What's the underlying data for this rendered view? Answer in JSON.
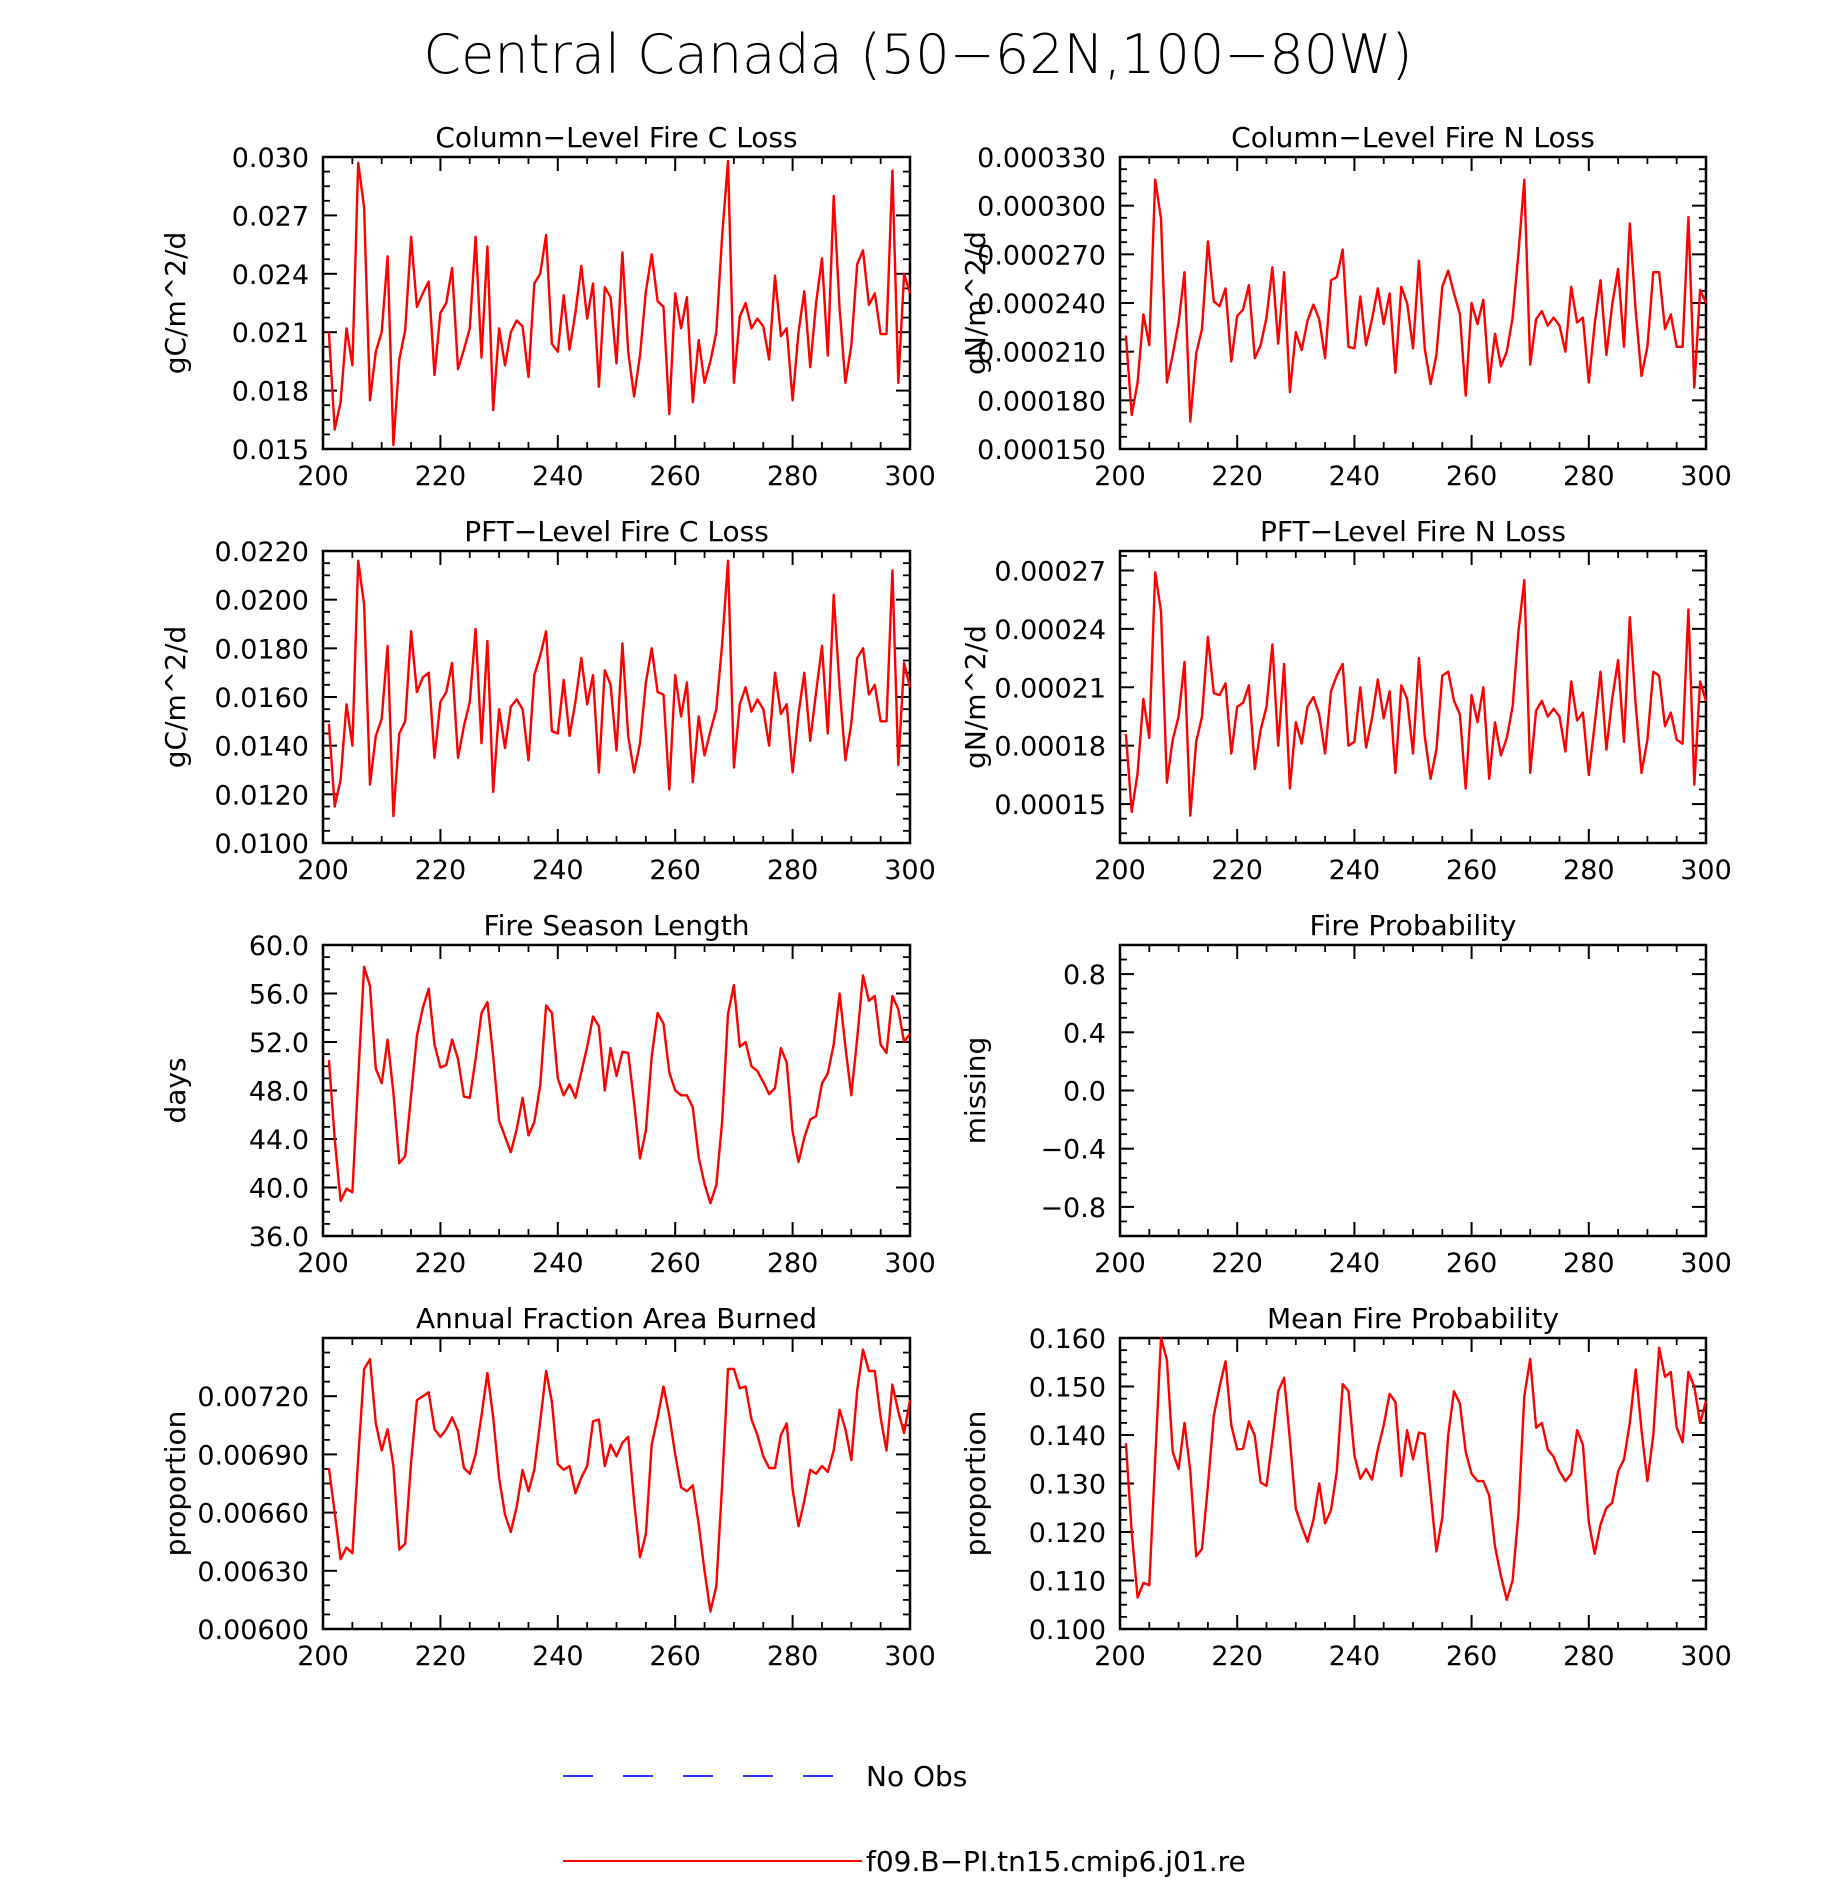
{
  "figure": {
    "title": "Central Canada (50−62N,100−80W)"
  },
  "legend": {
    "entries": [
      {
        "label": "No Obs",
        "color": "#3333ff",
        "style": "dashed"
      },
      {
        "label": "f09.B−PI.tn15.cmip6.j01.re",
        "color": "#ff0000",
        "style": "solid"
      }
    ]
  },
  "colors": {
    "series": "#ff0000",
    "obs": "#3333ff",
    "axis": "#000000"
  },
  "chart_data": [
    {
      "type": "line",
      "title": "Column−Level Fire C Loss",
      "ylabel": "gC/m^2/d",
      "xlim": [
        200,
        300
      ],
      "ylim": [
        0.015,
        0.03
      ],
      "xticks": [
        "200",
        "220",
        "240",
        "260",
        "280",
        "300"
      ],
      "yticks": [
        "0.015",
        "0.018",
        "0.021",
        "0.024",
        "0.027",
        "0.030"
      ],
      "x_start": 201,
      "x_step": 1,
      "series": [
        {
          "name": "f09.B−PI.tn15.cmip6.j01.re",
          "values": [
            0.021,
            0.016,
            0.0174,
            0.0212,
            0.0193,
            0.0297,
            0.0274,
            0.0175,
            0.02,
            0.021,
            0.0249,
            0.0152,
            0.0196,
            0.0211,
            0.0259,
            0.0223,
            0.023,
            0.0236,
            0.0188,
            0.022,
            0.0225,
            0.0243,
            0.0191,
            0.0201,
            0.0212,
            0.0259,
            0.0197,
            0.0254,
            0.017,
            0.0212,
            0.0193,
            0.021,
            0.0216,
            0.0213,
            0.0187,
            0.0235,
            0.024,
            0.026,
            0.0204,
            0.02,
            0.0229,
            0.0201,
            0.022,
            0.0244,
            0.0217,
            0.0235,
            0.0182,
            0.0233,
            0.0228,
            0.0194,
            0.0251,
            0.02,
            0.0177,
            0.0198,
            0.0231,
            0.025,
            0.0226,
            0.0223,
            0.0168,
            0.023,
            0.0212,
            0.0228,
            0.0174,
            0.0206,
            0.0184,
            0.0195,
            0.021,
            0.026,
            0.0298,
            0.0184,
            0.0218,
            0.0225,
            0.0212,
            0.0217,
            0.0213,
            0.0196,
            0.0239,
            0.0208,
            0.0212,
            0.0175,
            0.021,
            0.0231,
            0.0192,
            0.0225,
            0.0248,
            0.0198,
            0.028,
            0.0222,
            0.0184,
            0.0203,
            0.0245,
            0.0252,
            0.0224,
            0.023,
            0.0209,
            0.0209,
            0.0293,
            0.0184,
            0.024,
            0.023
          ]
        }
      ]
    },
    {
      "type": "line",
      "title": "Column−Level Fire N Loss",
      "ylabel": "gN/m^2/d",
      "xlim": [
        200,
        300
      ],
      "ylim": [
        0.00015,
        0.00033
      ],
      "xticks": [
        "200",
        "220",
        "240",
        "260",
        "280",
        "300"
      ],
      "yticks": [
        "0.000150",
        "0.000180",
        "0.000210",
        "0.000240",
        "0.000270",
        "0.000300",
        "0.000330"
      ],
      "x_start": 201,
      "x_step": 1,
      "series": [
        {
          "name": "f09.B−PI.tn15.cmip6.j01.re",
          "values": [
            0.00022,
            0.000171,
            0.000191,
            0.000233,
            0.000214,
            0.000316,
            0.000292,
            0.000191,
            0.000208,
            0.000228,
            0.000259,
            0.000167,
            0.000209,
            0.000224,
            0.000278,
            0.000241,
            0.000238,
            0.000249,
            0.000204,
            0.000232,
            0.000236,
            0.000251,
            0.000206,
            0.000214,
            0.000231,
            0.000262,
            0.000215,
            0.000259,
            0.000185,
            0.000222,
            0.000211,
            0.000229,
            0.000239,
            0.00023,
            0.000206,
            0.000254,
            0.000256,
            0.000273,
            0.000213,
            0.000212,
            0.000244,
            0.000214,
            0.00023,
            0.000249,
            0.000227,
            0.000246,
            0.000197,
            0.00025,
            0.00024,
            0.000212,
            0.000266,
            0.000212,
            0.00019,
            0.000208,
            0.00025,
            0.00026,
            0.000246,
            0.000233,
            0.000183,
            0.00024,
            0.000227,
            0.000242,
            0.000191,
            0.000221,
            0.000201,
            0.00021,
            0.000231,
            0.000271,
            0.000316,
            0.000202,
            0.00023,
            0.000235,
            0.000226,
            0.000231,
            0.000226,
            0.00021,
            0.00025,
            0.000228,
            0.000231,
            0.000191,
            0.000227,
            0.000254,
            0.000208,
            0.000239,
            0.000261,
            0.000213,
            0.000289,
            0.000235,
            0.000195,
            0.000213,
            0.000259,
            0.000259,
            0.000224,
            0.000233,
            0.000213,
            0.000213,
            0.000293,
            0.000188,
            0.000248,
            0.00024
          ]
        }
      ]
    },
    {
      "type": "line",
      "title": "PFT−Level Fire C Loss",
      "ylabel": "gC/m^2/d",
      "xlim": [
        200,
        300
      ],
      "ylim": [
        0.01,
        0.022
      ],
      "xticks": [
        "200",
        "220",
        "240",
        "260",
        "280",
        "300"
      ],
      "yticks": [
        "0.0100",
        "0.0120",
        "0.0140",
        "0.0160",
        "0.0180",
        "0.0200",
        "0.0220"
      ],
      "x_start": 201,
      "x_step": 1,
      "series": [
        {
          "name": "f09.B−PI.tn15.cmip6.j01.re",
          "values": [
            0.0149,
            0.0115,
            0.0126,
            0.0157,
            0.014,
            0.0216,
            0.0198,
            0.0124,
            0.0144,
            0.0151,
            0.0181,
            0.0111,
            0.0145,
            0.015,
            0.0187,
            0.0162,
            0.0168,
            0.017,
            0.0135,
            0.0158,
            0.0162,
            0.0174,
            0.0135,
            0.0148,
            0.0158,
            0.0188,
            0.0141,
            0.0183,
            0.0121,
            0.0155,
            0.0139,
            0.0156,
            0.0159,
            0.0155,
            0.0134,
            0.0169,
            0.0177,
            0.0187,
            0.0146,
            0.0145,
            0.0167,
            0.0144,
            0.0158,
            0.0176,
            0.0157,
            0.0169,
            0.0129,
            0.0171,
            0.0165,
            0.0138,
            0.0182,
            0.0144,
            0.0129,
            0.0141,
            0.0166,
            0.018,
            0.0162,
            0.0161,
            0.0122,
            0.0169,
            0.0152,
            0.0166,
            0.0125,
            0.0152,
            0.0136,
            0.0146,
            0.0155,
            0.0182,
            0.0216,
            0.0131,
            0.0157,
            0.0164,
            0.0154,
            0.0159,
            0.0155,
            0.014,
            0.017,
            0.0153,
            0.0157,
            0.0129,
            0.0153,
            0.017,
            0.0142,
            0.0162,
            0.0181,
            0.0145,
            0.0202,
            0.0164,
            0.0134,
            0.0149,
            0.0176,
            0.018,
            0.0161,
            0.0165,
            0.015,
            0.015,
            0.0212,
            0.0132,
            0.0174,
            0.0164
          ]
        }
      ]
    },
    {
      "type": "line",
      "title": "PFT−Level Fire N Loss",
      "ylabel": "gN/m^2/d",
      "xlim": [
        200,
        300
      ],
      "ylim": [
        0.00013,
        0.00028
      ],
      "xticks": [
        "200",
        "220",
        "240",
        "260",
        "280",
        "300"
      ],
      "yticks": [
        "0.00015",
        "0.00018",
        "0.00021",
        "0.00024",
        "0.00027"
      ],
      "x_start": 201,
      "x_step": 1,
      "series": [
        {
          "name": "f09.B−PI.tn15.cmip6.j01.re",
          "values": [
            0.000186,
            0.000146,
            0.000166,
            0.000204,
            0.000184,
            0.000269,
            0.000249,
            0.000161,
            0.000183,
            0.000195,
            0.000223,
            0.000144,
            0.000182,
            0.000195,
            0.000236,
            0.000207,
            0.000206,
            0.000212,
            0.000176,
            0.0002,
            0.000202,
            0.000211,
            0.000168,
            0.000188,
            0.0002,
            0.000232,
            0.00018,
            0.000222,
            0.000158,
            0.000192,
            0.000181,
            0.0002,
            0.000205,
            0.000196,
            0.000176,
            0.000208,
            0.000216,
            0.000222,
            0.00018,
            0.000182,
            0.00021,
            0.000179,
            0.000194,
            0.000214,
            0.000194,
            0.000208,
            0.000166,
            0.000211,
            0.000204,
            0.000176,
            0.000225,
            0.000185,
            0.000163,
            0.000178,
            0.000216,
            0.000218,
            0.000203,
            0.000196,
            0.000158,
            0.000206,
            0.000192,
            0.00021,
            0.000163,
            0.000192,
            0.000175,
            0.000184,
            0.0002,
            0.000239,
            0.000265,
            0.000166,
            0.000198,
            0.000203,
            0.000195,
            0.000199,
            0.000195,
            0.000177,
            0.000213,
            0.000193,
            0.000197,
            0.000165,
            0.000191,
            0.000218,
            0.000178,
            0.000204,
            0.000224,
            0.000182,
            0.000246,
            0.000201,
            0.000166,
            0.000183,
            0.000218,
            0.000216,
            0.00019,
            0.000197,
            0.000183,
            0.000181,
            0.00025,
            0.00016,
            0.000213,
            0.000203
          ]
        }
      ]
    },
    {
      "type": "line",
      "title": "Fire Season Length",
      "ylabel": "days",
      "xlim": [
        200,
        300
      ],
      "ylim": [
        36.0,
        60.0
      ],
      "xticks": [
        "200",
        "220",
        "240",
        "260",
        "280",
        "300"
      ],
      "yticks": [
        "36.0",
        "40.0",
        "44.0",
        "48.0",
        "52.0",
        "56.0",
        "60.0"
      ],
      "x_start": 201,
      "x_step": 1,
      "series": [
        {
          "name": "f09.B−PI.tn15.cmip6.j01.re",
          "values": [
            50.5,
            44.0,
            38.9,
            39.9,
            39.6,
            49.0,
            58.2,
            56.6,
            49.8,
            48.6,
            52.2,
            47.8,
            42.0,
            42.6,
            47.6,
            52.5,
            54.8,
            56.4,
            51.8,
            49.9,
            50.1,
            52.2,
            50.6,
            47.5,
            47.4,
            50.6,
            54.4,
            55.3,
            50.8,
            45.5,
            44.2,
            42.9,
            44.8,
            47.4,
            44.3,
            45.4,
            48.4,
            55.0,
            54.4,
            49.0,
            47.6,
            48.5,
            47.4,
            49.5,
            51.6,
            54.1,
            53.3,
            48.0,
            51.5,
            49.2,
            51.2,
            51.1,
            47.0,
            42.4,
            44.7,
            50.8,
            54.4,
            53.5,
            49.5,
            48.0,
            47.6,
            47.6,
            46.6,
            42.5,
            40.3,
            38.7,
            40.2,
            45.5,
            54.3,
            56.7,
            51.6,
            52.0,
            50.0,
            49.6,
            48.7,
            47.7,
            48.2,
            51.5,
            50.3,
            44.6,
            42.1,
            44.1,
            45.6,
            45.9,
            48.6,
            49.4,
            51.8,
            56.0,
            51.6,
            47.6,
            52.3,
            57.5,
            55.4,
            55.8,
            51.8,
            51.1,
            55.8,
            54.7,
            52.0,
            52.7
          ]
        }
      ]
    },
    {
      "type": "line",
      "title": "Fire Probability",
      "ylabel": "missing",
      "xlim": [
        200,
        300
      ],
      "ylim": [
        -1.0,
        1.0
      ],
      "xticks": [
        "200",
        "220",
        "240",
        "260",
        "280",
        "300"
      ],
      "yticks": [
        "−0.8",
        "−0.4",
        "0.0",
        "0.4",
        "0.8"
      ],
      "x_start": 201,
      "x_step": 1,
      "series": []
    },
    {
      "type": "line",
      "title": "Annual Fraction Area Burned",
      "ylabel": "proportion",
      "xlim": [
        200,
        300
      ],
      "ylim": [
        0.006,
        0.0075
      ],
      "xticks": [
        "200",
        "220",
        "240",
        "260",
        "280",
        "300"
      ],
      "yticks": [
        "0.00600",
        "0.00630",
        "0.00660",
        "0.00690",
        "0.00720"
      ],
      "x_start": 201,
      "x_step": 1,
      "series": [
        {
          "name": "f09.B−PI.tn15.cmip6.j01.re",
          "values": [
            0.00683,
            0.0066,
            0.00636,
            0.00642,
            0.00639,
            0.00688,
            0.00734,
            0.00739,
            0.00706,
            0.00692,
            0.00703,
            0.00684,
            0.00641,
            0.00644,
            0.00686,
            0.00718,
            0.0072,
            0.00722,
            0.00703,
            0.00699,
            0.00703,
            0.00709,
            0.00702,
            0.00683,
            0.0068,
            0.0069,
            0.0071,
            0.00732,
            0.00709,
            0.00678,
            0.00659,
            0.0065,
            0.00663,
            0.00682,
            0.00671,
            0.00682,
            0.00707,
            0.00733,
            0.00717,
            0.00685,
            0.00682,
            0.00684,
            0.0067,
            0.00678,
            0.00684,
            0.00707,
            0.00708,
            0.00684,
            0.00695,
            0.00689,
            0.00696,
            0.00699,
            0.00666,
            0.00637,
            0.00649,
            0.00695,
            0.00709,
            0.00725,
            0.0071,
            0.0069,
            0.00673,
            0.00671,
            0.00674,
            0.00654,
            0.0063,
            0.00609,
            0.00622,
            0.00675,
            0.00734,
            0.00734,
            0.00724,
            0.00725,
            0.00708,
            0.007,
            0.00689,
            0.00683,
            0.00683,
            0.007,
            0.00706,
            0.00672,
            0.00653,
            0.00666,
            0.00682,
            0.0068,
            0.00684,
            0.00681,
            0.00692,
            0.00713,
            0.00703,
            0.00687,
            0.00723,
            0.00744,
            0.00733,
            0.00733,
            0.00709,
            0.00692,
            0.00726,
            0.00712,
            0.00701,
            0.00718
          ]
        }
      ]
    },
    {
      "type": "line",
      "title": "Mean Fire Probability",
      "ylabel": "proportion",
      "xlim": [
        200,
        300
      ],
      "ylim": [
        0.1,
        0.16
      ],
      "xticks": [
        "200",
        "220",
        "240",
        "260",
        "280",
        "300"
      ],
      "yticks": [
        "0.100",
        "0.110",
        "0.120",
        "0.130",
        "0.140",
        "0.150",
        "0.160"
      ],
      "x_start": 201,
      "x_step": 1,
      "series": [
        {
          "name": "f09.B−PI.tn15.cmip6.j01.re",
          "values": [
            0.1383,
            0.12,
            0.1065,
            0.1095,
            0.109,
            0.135,
            0.16,
            0.1555,
            0.1365,
            0.133,
            0.1425,
            0.1325,
            0.115,
            0.1165,
            0.1295,
            0.144,
            0.15,
            0.1552,
            0.142,
            0.137,
            0.1372,
            0.1428,
            0.1398,
            0.1302,
            0.1295,
            0.139,
            0.149,
            0.1518,
            0.139,
            0.1248,
            0.1212,
            0.118,
            0.1225,
            0.13,
            0.1218,
            0.1245,
            0.1325,
            0.1505,
            0.149,
            0.1358,
            0.131,
            0.133,
            0.1308,
            0.137,
            0.142,
            0.1485,
            0.1468,
            0.1315,
            0.141,
            0.135,
            0.1405,
            0.1402,
            0.128,
            0.116,
            0.123,
            0.14,
            0.149,
            0.1465,
            0.1365,
            0.132,
            0.1305,
            0.1305,
            0.1275,
            0.117,
            0.111,
            0.106,
            0.11,
            0.124,
            0.148,
            0.1557,
            0.1415,
            0.1425,
            0.137,
            0.1355,
            0.1325,
            0.1305,
            0.132,
            0.141,
            0.138,
            0.122,
            0.1155,
            0.1215,
            0.125,
            0.126,
            0.1325,
            0.135,
            0.1425,
            0.1535,
            0.141,
            0.1305,
            0.14,
            0.158,
            0.152,
            0.153,
            0.1415,
            0.1385,
            0.153,
            0.15,
            0.1425,
            0.147
          ]
        }
      ]
    }
  ]
}
